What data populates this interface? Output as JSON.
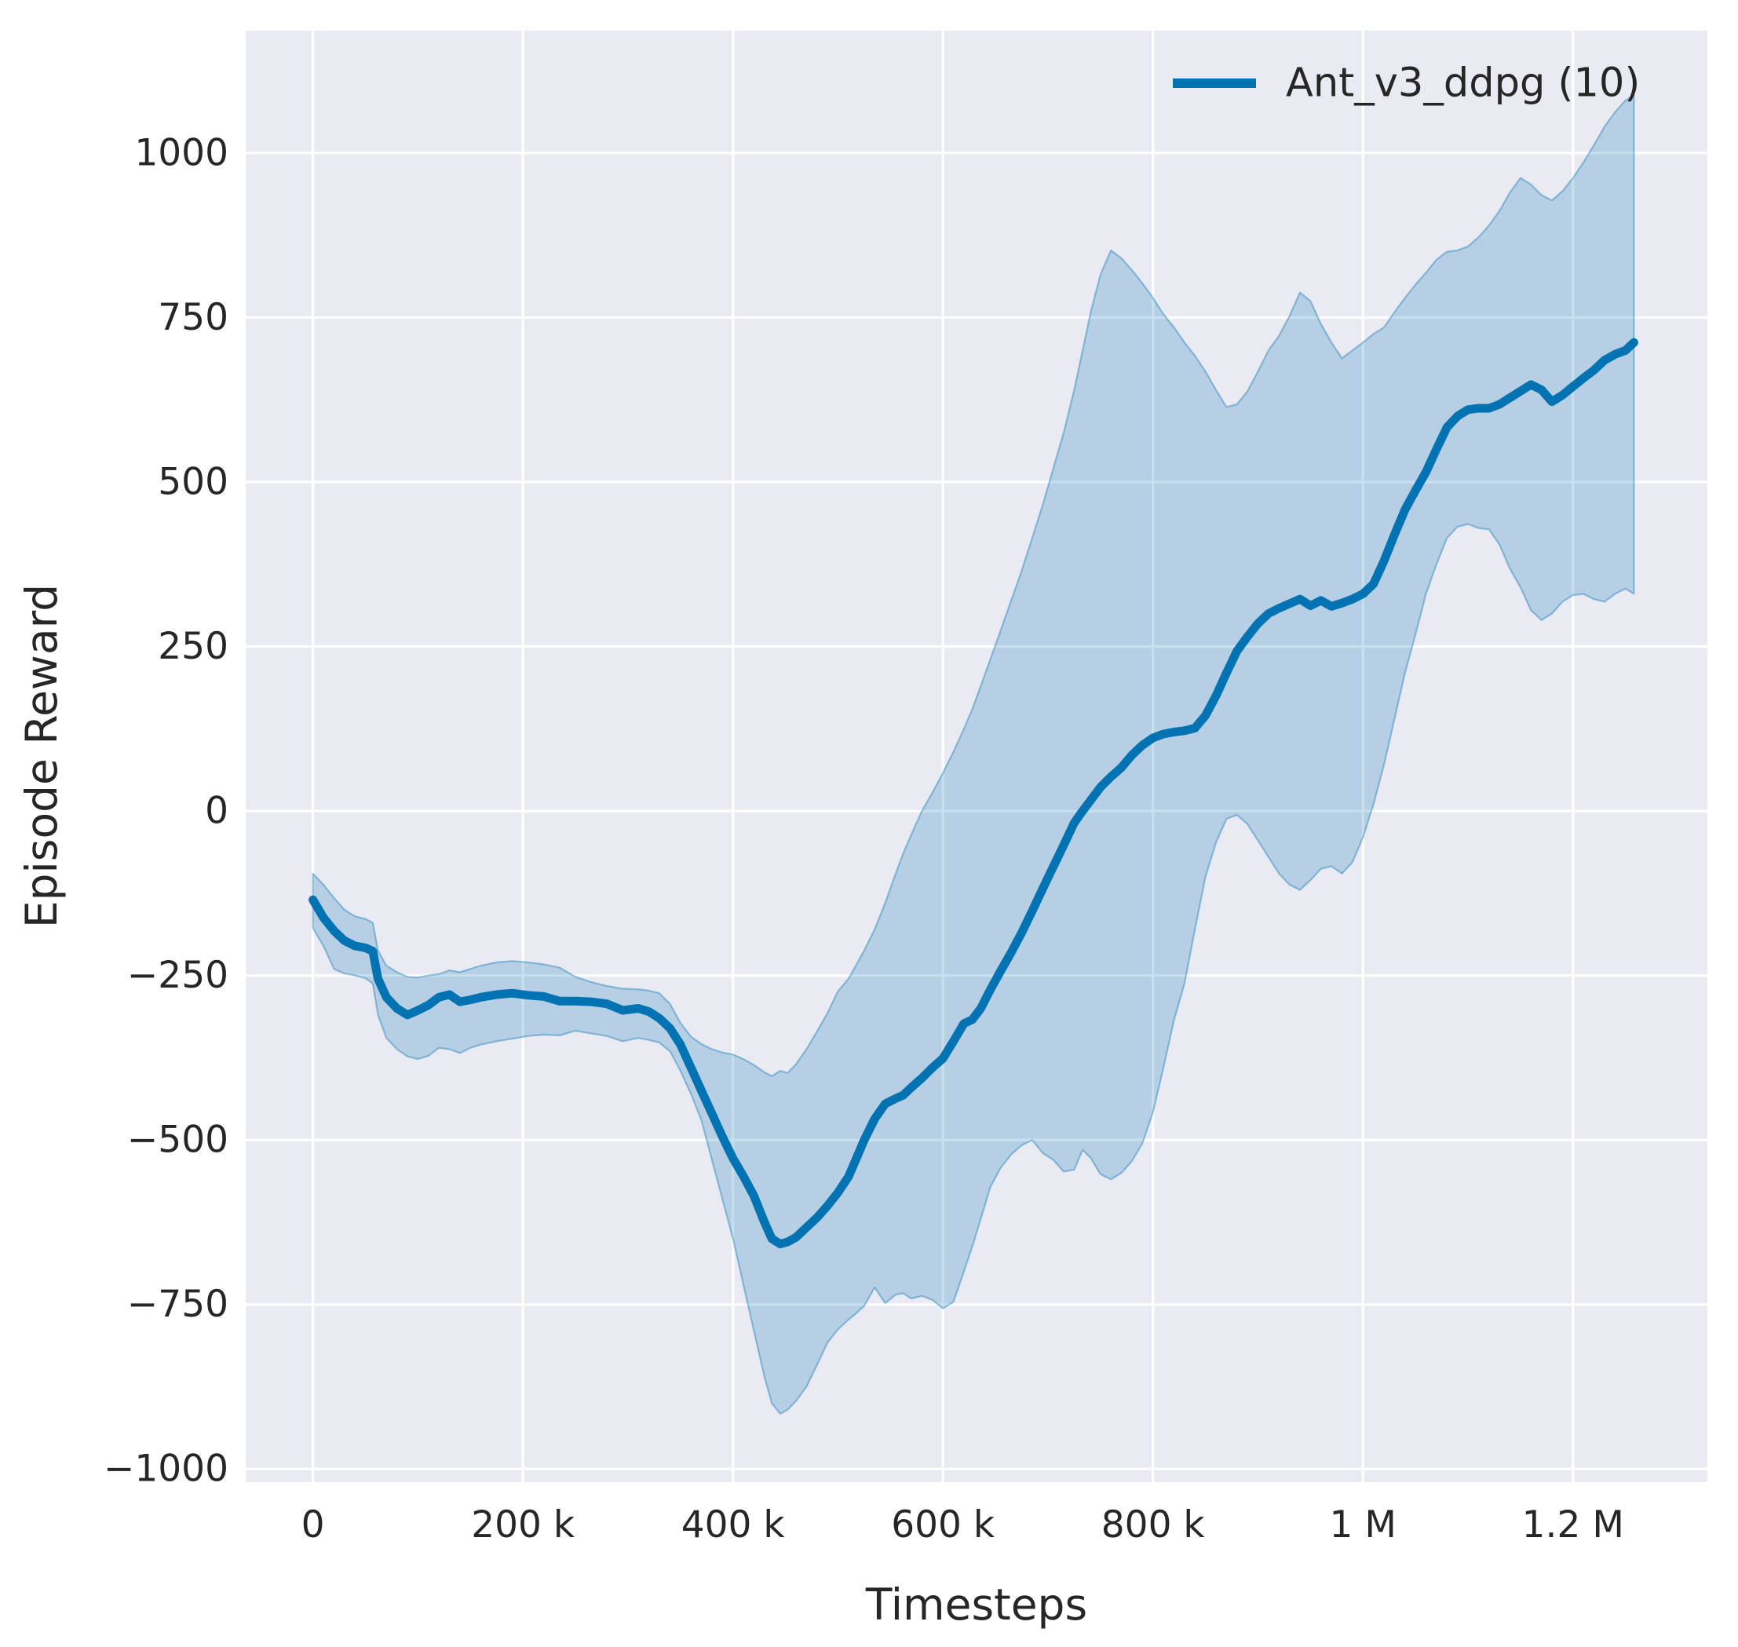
{
  "chart_data": {
    "type": "line",
    "title": "",
    "xlabel": "Timesteps",
    "ylabel": "Episode Reward",
    "legend": {
      "position": "upper right",
      "label": "Ant_v3_ddpg (10)"
    },
    "grid": true,
    "xlim_k": [
      -64,
      1328
    ],
    "ylim": [
      -1020,
      1186
    ],
    "x_ticks": {
      "values_k": [
        0,
        200,
        400,
        600,
        800,
        1000,
        1200
      ],
      "labels": [
        "0",
        "200 k",
        "400 k",
        "600 k",
        "800 k",
        "1 M",
        "1.2 M"
      ]
    },
    "y_ticks": {
      "values": [
        1000,
        750,
        500,
        250,
        0,
        -250,
        -500,
        -750,
        -1000
      ],
      "labels": [
        "1000",
        "750",
        "500",
        "250",
        "0",
        "−250",
        "−500",
        "−750",
        "−1000"
      ]
    },
    "colors": {
      "line": "#0173b2",
      "band": "#0173b2",
      "band_alpha": 0.22,
      "band_edge_alpha": 0.38,
      "axes_background": "#eaeaf2",
      "grid": "#ffffff",
      "text": "#262626"
    },
    "series": [
      {
        "name": "Ant_v3_ddpg (10)",
        "x_timesteps_k": [
          0,
          10,
          20,
          30,
          40,
          50,
          57,
          62,
          70,
          80,
          90,
          100,
          110,
          120,
          130,
          140,
          150,
          160,
          175,
          190,
          205,
          220,
          235,
          250,
          265,
          280,
          295,
          310,
          320,
          330,
          340,
          350,
          360,
          370,
          380,
          390,
          400,
          410,
          420,
          430,
          437,
          445,
          452,
          460,
          470,
          480,
          490,
          500,
          510,
          517,
          525,
          535,
          545,
          555,
          562,
          570,
          580,
          590,
          600,
          610,
          620,
          628,
          636,
          645,
          655,
          665,
          675,
          685,
          695,
          705,
          715,
          725,
          733,
          741,
          750,
          760,
          770,
          780,
          790,
          800,
          810,
          820,
          830,
          840,
          850,
          860,
          870,
          880,
          890,
          900,
          910,
          920,
          930,
          940,
          950,
          960,
          970,
          980,
          990,
          1000,
          1010,
          1020,
          1030,
          1040,
          1050,
          1060,
          1070,
          1080,
          1090,
          1100,
          1110,
          1120,
          1130,
          1140,
          1150,
          1160,
          1170,
          1180,
          1190,
          1200,
          1210,
          1220,
          1230,
          1240,
          1250,
          1258
        ],
        "mean": [
          -135,
          -162,
          -182,
          -197,
          -205,
          -208,
          -213,
          -255,
          -283,
          -300,
          -310,
          -303,
          -295,
          -283,
          -279,
          -290,
          -287,
          -283,
          -279,
          -277,
          -280,
          -282,
          -289,
          -289,
          -290,
          -293,
          -303,
          -300,
          -305,
          -315,
          -330,
          -355,
          -390,
          -425,
          -460,
          -495,
          -528,
          -555,
          -585,
          -625,
          -650,
          -658,
          -655,
          -648,
          -633,
          -618,
          -600,
          -580,
          -556,
          -530,
          -500,
          -468,
          -445,
          -437,
          -432,
          -420,
          -406,
          -390,
          -376,
          -350,
          -323,
          -317,
          -300,
          -272,
          -243,
          -215,
          -185,
          -152,
          -118,
          -85,
          -52,
          -18,
          0,
          17,
          36,
          52,
          66,
          85,
          100,
          111,
          117,
          120,
          122,
          126,
          145,
          175,
          210,
          243,
          265,
          285,
          300,
          308,
          315,
          322,
          312,
          320,
          311,
          316,
          322,
          330,
          345,
          380,
          420,
          458,
          487,
          515,
          550,
          583,
          600,
          610,
          612,
          612,
          618,
          628,
          638,
          648,
          640,
          622,
          632,
          645,
          658,
          670,
          685,
          694,
          700,
          712
        ],
        "band_lower": [
          -178,
          -205,
          -240,
          -247,
          -250,
          -254,
          -262,
          -310,
          -345,
          -362,
          -373,
          -377,
          -372,
          -360,
          -362,
          -368,
          -360,
          -355,
          -350,
          -346,
          -342,
          -340,
          -341,
          -334,
          -338,
          -342,
          -350,
          -345,
          -348,
          -352,
          -365,
          -395,
          -430,
          -470,
          -530,
          -590,
          -650,
          -720,
          -790,
          -860,
          -900,
          -916,
          -910,
          -897,
          -875,
          -842,
          -808,
          -788,
          -773,
          -764,
          -752,
          -724,
          -748,
          -735,
          -733,
          -741,
          -737,
          -743,
          -756,
          -746,
          -700,
          -662,
          -620,
          -572,
          -542,
          -522,
          -508,
          -500,
          -520,
          -530,
          -548,
          -545,
          -515,
          -528,
          -552,
          -560,
          -550,
          -532,
          -505,
          -458,
          -390,
          -318,
          -262,
          -180,
          -100,
          -48,
          -12,
          -6,
          -20,
          -45,
          -70,
          -95,
          -112,
          -120,
          -105,
          -88,
          -84,
          -95,
          -78,
          -40,
          10,
          70,
          140,
          210,
          268,
          330,
          375,
          415,
          432,
          436,
          430,
          428,
          405,
          368,
          340,
          305,
          290,
          300,
          318,
          328,
          330,
          322,
          318,
          330,
          338,
          330
        ],
        "band_upper": [
          -95,
          -112,
          -132,
          -150,
          -160,
          -164,
          -170,
          -212,
          -235,
          -245,
          -252,
          -253,
          -250,
          -248,
          -242,
          -245,
          -240,
          -235,
          -230,
          -228,
          -230,
          -233,
          -238,
          -252,
          -260,
          -266,
          -270,
          -271,
          -273,
          -277,
          -293,
          -322,
          -343,
          -354,
          -362,
          -367,
          -370,
          -377,
          -386,
          -397,
          -403,
          -395,
          -398,
          -385,
          -362,
          -335,
          -307,
          -274,
          -255,
          -235,
          -212,
          -180,
          -140,
          -95,
          -65,
          -35,
          0,
          28,
          58,
          90,
          125,
          155,
          190,
          230,
          275,
          320,
          365,
          415,
          465,
          520,
          575,
          640,
          700,
          760,
          815,
          852,
          840,
          822,
          802,
          780,
          755,
          735,
          712,
          692,
          668,
          640,
          614,
          618,
          638,
          668,
          700,
          722,
          752,
          788,
          775,
          740,
          712,
          688,
          700,
          712,
          725,
          735,
          758,
          780,
          800,
          818,
          838,
          850,
          852,
          858,
          872,
          890,
          912,
          940,
          962,
          952,
          936,
          928,
          942,
          962,
          986,
          1012,
          1040,
          1062,
          1080,
          1088
        ]
      }
    ]
  }
}
